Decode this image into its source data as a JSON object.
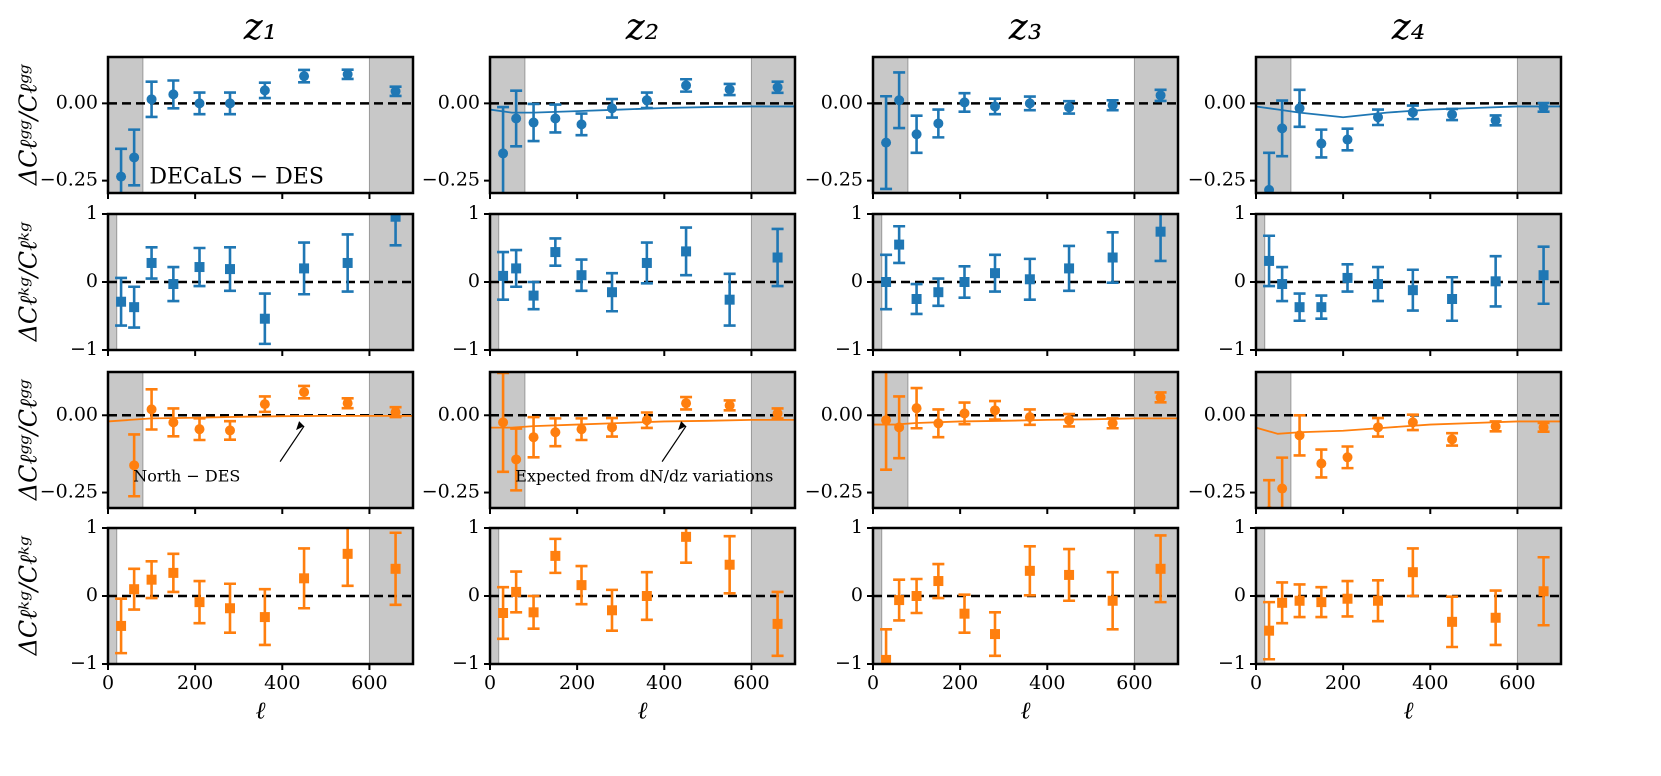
{
  "chart_data": [
    {
      "type": "scatter",
      "title": "z₁",
      "ylabel": "ΔCℓᵍᵍ/Cℓᵍᵍ",
      "annotation": "DECaLS − DES",
      "color": "#1f77b4",
      "marker": "circle",
      "x": [
        30,
        60,
        100,
        150,
        210,
        280,
        360,
        450,
        550,
        660
      ],
      "values": [
        -0.237,
        -0.175,
        0.013,
        0.029,
        0,
        0,
        0.042,
        0.088,
        0.094,
        0.039
      ],
      "errors": [
        0.09,
        0.09,
        0.057,
        0.045,
        0.035,
        0.035,
        0.025,
        0.02,
        0.015,
        0.015
      ],
      "xlim": [
        0,
        700
      ],
      "xticks": [
        0,
        200,
        400,
        600
      ],
      "ylim": [
        -0.29,
        0.15
      ],
      "yticks": [
        {
          "value": 0,
          "label": "0.00"
        },
        {
          "value": -0.25,
          "label": "−0.25"
        }
      ],
      "hline": 0,
      "shade": [
        [
          0,
          80
        ],
        [
          600,
          700
        ]
      ]
    },
    {
      "type": "scatter",
      "title": "z₂",
      "color": "#1f77b4",
      "marker": "circle",
      "x": [
        30,
        60,
        100,
        150,
        210,
        280,
        360,
        450,
        550,
        660
      ],
      "values": [
        -0.162,
        -0.049,
        -0.062,
        -0.049,
        -0.068,
        -0.016,
        0.01,
        0.058,
        0.045,
        0.052
      ],
      "errors": [
        0.15,
        0.09,
        0.06,
        0.045,
        0.035,
        0.03,
        0.025,
        0.02,
        0.018,
        0.018
      ],
      "model": {
        "x": [
          0,
          50,
          100,
          200,
          300,
          400,
          500,
          600,
          700
        ],
        "values": [
          -0.02,
          -0.03,
          -0.03,
          -0.025,
          -0.02,
          -0.015,
          -0.012,
          -0.01,
          -0.01
        ]
      },
      "xlim": [
        0,
        700
      ],
      "xticks": [
        0,
        200,
        400,
        600
      ],
      "ylim": [
        -0.29,
        0.15
      ],
      "yticks": [
        {
          "value": 0,
          "label": "0.00"
        },
        {
          "value": -0.25,
          "label": "−0.25"
        }
      ],
      "hline": 0,
      "shade": [
        [
          0,
          80
        ],
        [
          600,
          700
        ]
      ]
    },
    {
      "type": "scatter",
      "title": "z₃",
      "color": "#1f77b4",
      "marker": "circle",
      "x": [
        30,
        60,
        100,
        150,
        210,
        280,
        360,
        450,
        550,
        660
      ],
      "values": [
        -0.127,
        0.01,
        -0.1,
        -0.065,
        0.003,
        -0.01,
        0,
        -0.013,
        -0.006,
        0.026
      ],
      "errors": [
        0.15,
        0.09,
        0.06,
        0.045,
        0.03,
        0.025,
        0.022,
        0.02,
        0.016,
        0.018
      ],
      "xlim": [
        0,
        700
      ],
      "xticks": [
        0,
        200,
        400,
        600
      ],
      "ylim": [
        -0.29,
        0.15
      ],
      "yticks": [
        {
          "value": 0,
          "label": "0.00"
        },
        {
          "value": -0.25,
          "label": "−0.25"
        }
      ],
      "hline": 0,
      "shade": [
        [
          0,
          80
        ],
        [
          600,
          700
        ]
      ]
    },
    {
      "type": "scatter",
      "title": "z₄",
      "color": "#1f77b4",
      "marker": "circle",
      "x": [
        30,
        60,
        100,
        150,
        210,
        280,
        360,
        450,
        550,
        660
      ],
      "values": [
        -0.28,
        -0.081,
        -0.016,
        -0.13,
        -0.117,
        -0.045,
        -0.029,
        -0.036,
        -0.055,
        -0.013
      ],
      "errors": [
        0.12,
        0.09,
        0.06,
        0.045,
        0.035,
        0.025,
        0.022,
        0.018,
        0.016,
        0.014
      ],
      "model": {
        "x": [
          0,
          50,
          100,
          200,
          300,
          400,
          500,
          600,
          700
        ],
        "values": [
          -0.01,
          -0.02,
          -0.03,
          -0.045,
          -0.03,
          -0.02,
          -0.015,
          -0.01,
          -0.01
        ]
      },
      "xlim": [
        0,
        700
      ],
      "xticks": [
        0,
        200,
        400,
        600
      ],
      "ylim": [
        -0.29,
        0.15
      ],
      "yticks": [
        {
          "value": 0,
          "label": "0.00"
        },
        {
          "value": -0.25,
          "label": "−0.25"
        }
      ],
      "hline": 0,
      "shade": [
        [
          0,
          80
        ],
        [
          600,
          700
        ]
      ]
    },
    {
      "type": "scatter",
      "ylabel": "ΔCℓᵏᵍ/Cℓᵏᵍ",
      "color": "#1f77b4",
      "marker": "square",
      "x": [
        30,
        60,
        100,
        150,
        210,
        280,
        360,
        450,
        550,
        660
      ],
      "values": [
        -0.29,
        -0.37,
        0.28,
        -0.03,
        0.22,
        0.19,
        -0.54,
        0.2,
        0.28,
        0.96
      ],
      "errors": [
        0.35,
        0.3,
        0.23,
        0.25,
        0.28,
        0.32,
        0.37,
        0.38,
        0.42,
        0.42
      ],
      "xlim": [
        0,
        700
      ],
      "xticks": [
        0,
        200,
        400,
        600
      ],
      "ylim": [
        -1,
        1
      ],
      "yticks": [
        1,
        0,
        {
          "value": -1,
          "label": "−1"
        }
      ],
      "hline": 0,
      "shade": [
        [
          0,
          20
        ],
        [
          600,
          700
        ]
      ]
    },
    {
      "type": "scatter",
      "color": "#1f77b4",
      "marker": "square",
      "x": [
        30,
        60,
        100,
        150,
        210,
        280,
        360,
        450,
        550,
        660
      ],
      "values": [
        0.09,
        0.2,
        -0.2,
        0.44,
        0.1,
        -0.15,
        0.28,
        0.45,
        -0.26,
        0.36
      ],
      "errors": [
        0.35,
        0.27,
        0.2,
        0.2,
        0.23,
        0.28,
        0.3,
        0.35,
        0.38,
        0.42
      ],
      "xlim": [
        0,
        700
      ],
      "xticks": [
        0,
        200,
        400,
        600
      ],
      "ylim": [
        -1,
        1
      ],
      "yticks": [
        1,
        0,
        {
          "value": -1,
          "label": "−1"
        }
      ],
      "hline": 0,
      "shade": [
        [
          0,
          20
        ],
        [
          600,
          700
        ]
      ]
    },
    {
      "type": "scatter",
      "color": "#1f77b4",
      "marker": "square",
      "x": [
        30,
        60,
        100,
        150,
        210,
        280,
        360,
        450,
        550,
        660
      ],
      "values": [
        0,
        0.55,
        -0.25,
        -0.15,
        0,
        0.13,
        0.04,
        0.2,
        0.36,
        0.74
      ],
      "errors": [
        0.4,
        0.27,
        0.22,
        0.2,
        0.23,
        0.27,
        0.3,
        0.33,
        0.37,
        0.43
      ],
      "xlim": [
        0,
        700
      ],
      "xticks": [
        0,
        200,
        400,
        600
      ],
      "ylim": [
        -1,
        1
      ],
      "yticks": [
        1,
        0,
        {
          "value": -1,
          "label": "−1"
        }
      ],
      "hline": 0,
      "shade": [
        [
          0,
          20
        ],
        [
          600,
          700
        ]
      ]
    },
    {
      "type": "scatter",
      "color": "#1f77b4",
      "marker": "square",
      "x": [
        30,
        60,
        100,
        150,
        210,
        280,
        360,
        450,
        550,
        660
      ],
      "values": [
        0.31,
        -0.03,
        -0.37,
        -0.37,
        0.06,
        -0.03,
        -0.12,
        -0.25,
        0.01,
        0.1
      ],
      "errors": [
        0.37,
        0.25,
        0.2,
        0.17,
        0.2,
        0.25,
        0.3,
        0.32,
        0.37,
        0.42
      ],
      "xlim": [
        0,
        700
      ],
      "xticks": [
        0,
        200,
        400,
        600
      ],
      "ylim": [
        -1,
        1
      ],
      "yticks": [
        1,
        0,
        {
          "value": -1,
          "label": "−1"
        }
      ],
      "hline": 0,
      "shade": [
        [
          0,
          20
        ],
        [
          600,
          700
        ]
      ]
    },
    {
      "type": "scatter",
      "ylabel": "ΔCℓᵍᵍ/Cℓᵍᵍ",
      "annotation": "North − DES",
      "color": "#ff7f0e",
      "marker": "circle",
      "x": [
        30,
        60,
        100,
        150,
        210,
        280,
        360,
        450,
        550,
        660
      ],
      "values": [
        null,
        -0.162,
        0.019,
        -0.023,
        -0.045,
        -0.049,
        0.036,
        0.075,
        0.039,
        0.01
      ],
      "errors": [
        null,
        0.1,
        0.065,
        0.045,
        0.035,
        0.03,
        0.025,
        0.02,
        0.016,
        0.016
      ],
      "model": {
        "x": [
          0,
          50,
          100,
          200,
          300,
          400,
          500,
          600,
          700
        ],
        "values": [
          -0.02,
          -0.015,
          -0.01,
          -0.008,
          -0.005,
          -0.003,
          -0.002,
          -0.002,
          -0.002
        ]
      },
      "xlim": [
        0,
        700
      ],
      "xticks": [
        0,
        200,
        400,
        600
      ],
      "ylim": [
        -0.3,
        0.14
      ],
      "yticks": [
        {
          "value": 0,
          "label": "0.00"
        },
        {
          "value": -0.25,
          "label": "−0.25"
        }
      ],
      "hline": 0,
      "shade": [
        [
          0,
          80
        ],
        [
          600,
          700
        ]
      ]
    },
    {
      "type": "scatter",
      "annotation": "Expected from dN/dz variations",
      "color": "#ff7f0e",
      "marker": "circle",
      "x": [
        30,
        60,
        100,
        150,
        210,
        280,
        360,
        450,
        550,
        660
      ],
      "values": [
        -0.023,
        -0.143,
        -0.071,
        -0.055,
        -0.045,
        -0.039,
        -0.016,
        0.039,
        0.032,
        0.006
      ],
      "errors": [
        0.16,
        0.1,
        0.065,
        0.045,
        0.035,
        0.03,
        0.025,
        0.02,
        0.016,
        0.016
      ],
      "model": {
        "x": [
          0,
          50,
          100,
          200,
          300,
          400,
          500,
          600,
          700
        ],
        "values": [
          -0.04,
          -0.04,
          -0.035,
          -0.03,
          -0.025,
          -0.02,
          -0.018,
          -0.015,
          -0.015
        ]
      },
      "xlim": [
        0,
        700
      ],
      "xticks": [
        0,
        200,
        400,
        600
      ],
      "ylim": [
        -0.3,
        0.14
      ],
      "yticks": [
        {
          "value": 0,
          "label": "0.00"
        },
        {
          "value": -0.25,
          "label": "−0.25"
        }
      ],
      "hline": 0,
      "shade": [
        [
          0,
          80
        ],
        [
          600,
          700
        ]
      ]
    },
    {
      "type": "scatter",
      "color": "#ff7f0e",
      "marker": "circle",
      "x": [
        30,
        60,
        100,
        150,
        210,
        280,
        360,
        450,
        550,
        660
      ],
      "values": [
        -0.016,
        -0.039,
        0.023,
        -0.026,
        0.006,
        0.016,
        -0.006,
        -0.016,
        -0.026,
        0.058
      ],
      "errors": [
        0.16,
        0.1,
        0.065,
        0.045,
        0.035,
        0.03,
        0.025,
        0.02,
        0.016,
        0.016
      ],
      "model": {
        "x": [
          0,
          50,
          100,
          200,
          300,
          400,
          500,
          600,
          700
        ],
        "values": [
          -0.03,
          -0.03,
          -0.025,
          -0.02,
          -0.018,
          -0.015,
          -0.013,
          -0.01,
          -0.01
        ]
      },
      "xlim": [
        0,
        700
      ],
      "xticks": [
        0,
        200,
        400,
        600
      ],
      "ylim": [
        -0.3,
        0.14
      ],
      "yticks": [
        {
          "value": 0,
          "label": "0.00"
        },
        {
          "value": -0.25,
          "label": "−0.25"
        }
      ],
      "hline": 0,
      "shade": [
        [
          0,
          80
        ],
        [
          600,
          700
        ]
      ]
    },
    {
      "type": "scatter",
      "color": "#ff7f0e",
      "marker": "circle",
      "x": [
        30,
        60,
        100,
        150,
        210,
        280,
        360,
        450,
        550,
        660
      ],
      "values": [
        -0.31,
        -0.237,
        -0.065,
        -0.156,
        -0.136,
        -0.039,
        -0.023,
        -0.078,
        -0.036,
        -0.039
      ],
      "errors": [
        0.1,
        0.1,
        0.065,
        0.045,
        0.035,
        0.03,
        0.025,
        0.02,
        0.016,
        0.014
      ],
      "model": {
        "x": [
          0,
          50,
          100,
          200,
          300,
          400,
          500,
          600,
          700
        ],
        "values": [
          -0.04,
          -0.06,
          -0.055,
          -0.05,
          -0.04,
          -0.03,
          -0.025,
          -0.02,
          -0.02
        ]
      },
      "xlim": [
        0,
        700
      ],
      "xticks": [
        0,
        200,
        400,
        600
      ],
      "ylim": [
        -0.3,
        0.14
      ],
      "yticks": [
        {
          "value": 0,
          "label": "0.00"
        },
        {
          "value": -0.25,
          "label": "−0.25"
        }
      ],
      "hline": 0,
      "shade": [
        [
          0,
          80
        ],
        [
          600,
          700
        ]
      ]
    },
    {
      "type": "scatter",
      "ylabel": "ΔCℓᵏᵍ/Cℓᵏᵍ",
      "xlabel": "ℓ",
      "color": "#ff7f0e",
      "marker": "square",
      "x": [
        30,
        60,
        100,
        150,
        210,
        280,
        360,
        450,
        550,
        660
      ],
      "values": [
        -0.44,
        0.1,
        0.24,
        0.34,
        -0.09,
        -0.18,
        -0.31,
        0.26,
        0.62,
        0.4
      ],
      "errors": [
        0.4,
        0.3,
        0.27,
        0.28,
        0.31,
        0.36,
        0.41,
        0.44,
        0.47,
        0.53
      ],
      "xlim": [
        0,
        700
      ],
      "xticks": [
        0,
        200,
        400,
        600
      ],
      "ylim": [
        -1,
        1
      ],
      "yticks": [
        1,
        0,
        {
          "value": -1,
          "label": "−1"
        }
      ],
      "hline": 0,
      "shade": [
        [
          0,
          20
        ],
        [
          600,
          700
        ]
      ]
    },
    {
      "type": "scatter",
      "xlabel": "ℓ",
      "color": "#ff7f0e",
      "marker": "square",
      "x": [
        30,
        60,
        100,
        150,
        210,
        280,
        360,
        450,
        550,
        660
      ],
      "values": [
        -0.25,
        0.06,
        -0.24,
        0.59,
        0.16,
        -0.21,
        0,
        0.87,
        0.46,
        -0.41
      ],
      "errors": [
        0.38,
        0.3,
        0.24,
        0.25,
        0.28,
        0.3,
        0.35,
        0.38,
        0.42,
        0.47
      ],
      "xlim": [
        0,
        700
      ],
      "xticks": [
        0,
        200,
        400,
        600
      ],
      "ylim": [
        -1,
        1
      ],
      "yticks": [
        1,
        0,
        {
          "value": -1,
          "label": "−1"
        }
      ],
      "hline": 0,
      "shade": [
        [
          0,
          20
        ],
        [
          600,
          700
        ]
      ]
    },
    {
      "type": "scatter",
      "xlabel": "ℓ",
      "color": "#ff7f0e",
      "marker": "square",
      "x": [
        30,
        60,
        100,
        150,
        210,
        280,
        360,
        450,
        550,
        660
      ],
      "values": [
        -0.94,
        -0.06,
        0,
        0.22,
        -0.26,
        -0.56,
        0.37,
        0.31,
        -0.07,
        0.4
      ],
      "errors": [
        0.45,
        0.3,
        0.25,
        0.25,
        0.28,
        0.32,
        0.36,
        0.38,
        0.42,
        0.49
      ],
      "xlim": [
        0,
        700
      ],
      "xticks": [
        0,
        200,
        400,
        600
      ],
      "ylim": [
        -1,
        1
      ],
      "yticks": [
        1,
        0,
        {
          "value": -1,
          "label": "−1"
        }
      ],
      "hline": 0,
      "shade": [
        [
          0,
          20
        ],
        [
          600,
          700
        ]
      ]
    },
    {
      "type": "scatter",
      "xlabel": "ℓ",
      "color": "#ff7f0e",
      "marker": "square",
      "x": [
        30,
        60,
        100,
        150,
        210,
        280,
        360,
        450,
        550,
        660
      ],
      "values": [
        -0.51,
        -0.1,
        -0.07,
        -0.09,
        -0.04,
        -0.07,
        0.35,
        -0.38,
        -0.32,
        0.07
      ],
      "errors": [
        0.42,
        0.3,
        0.24,
        0.22,
        0.26,
        0.3,
        0.35,
        0.37,
        0.4,
        0.5
      ],
      "xlim": [
        0,
        700
      ],
      "xticks": [
        0,
        200,
        400,
        600
      ],
      "ylim": [
        -1,
        1
      ],
      "yticks": [
        1,
        0,
        {
          "value": -1,
          "label": "−1"
        }
      ],
      "hline": 0,
      "shade": [
        [
          0,
          20
        ],
        [
          600,
          700
        ]
      ]
    }
  ]
}
